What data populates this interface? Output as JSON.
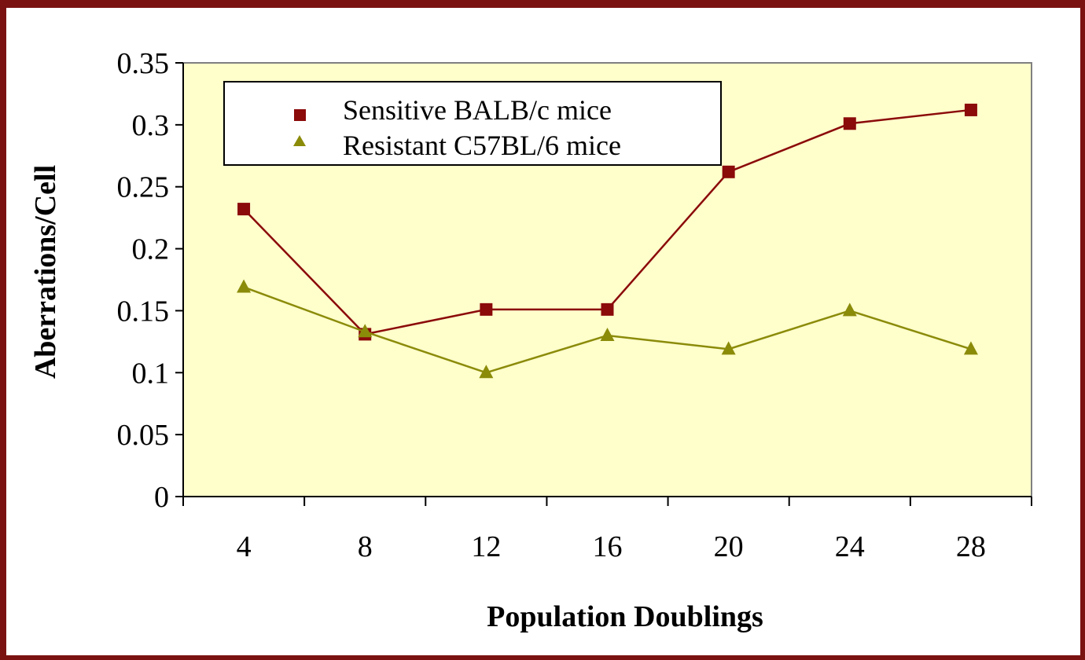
{
  "chart_data": {
    "type": "line",
    "title": "",
    "xlabel": "Population Doublings",
    "ylabel": "Aberrations/Cell",
    "categories": [
      "4",
      "8",
      "12",
      "16",
      "20",
      "24",
      "28"
    ],
    "ylim": [
      0,
      0.35
    ],
    "yticks": [
      "0",
      "0.05",
      "0.1",
      "0.15",
      "0.2",
      "0.25",
      "0.3",
      "0.35"
    ],
    "grid": false,
    "legend_position": "top-left",
    "plot_background": "#ffffcc",
    "series": [
      {
        "name": "Sensitive BALB/c mice",
        "marker": "square",
        "color": "#8b0a0a",
        "values": [
          0.232,
          0.131,
          0.151,
          0.151,
          0.262,
          0.301,
          0.312
        ]
      },
      {
        "name": "Resistant C57BL/6 mice",
        "marker": "triangle",
        "color": "#8b8b0a",
        "values": [
          0.169,
          0.133,
          0.1,
          0.13,
          0.119,
          0.15,
          0.119
        ]
      }
    ]
  }
}
